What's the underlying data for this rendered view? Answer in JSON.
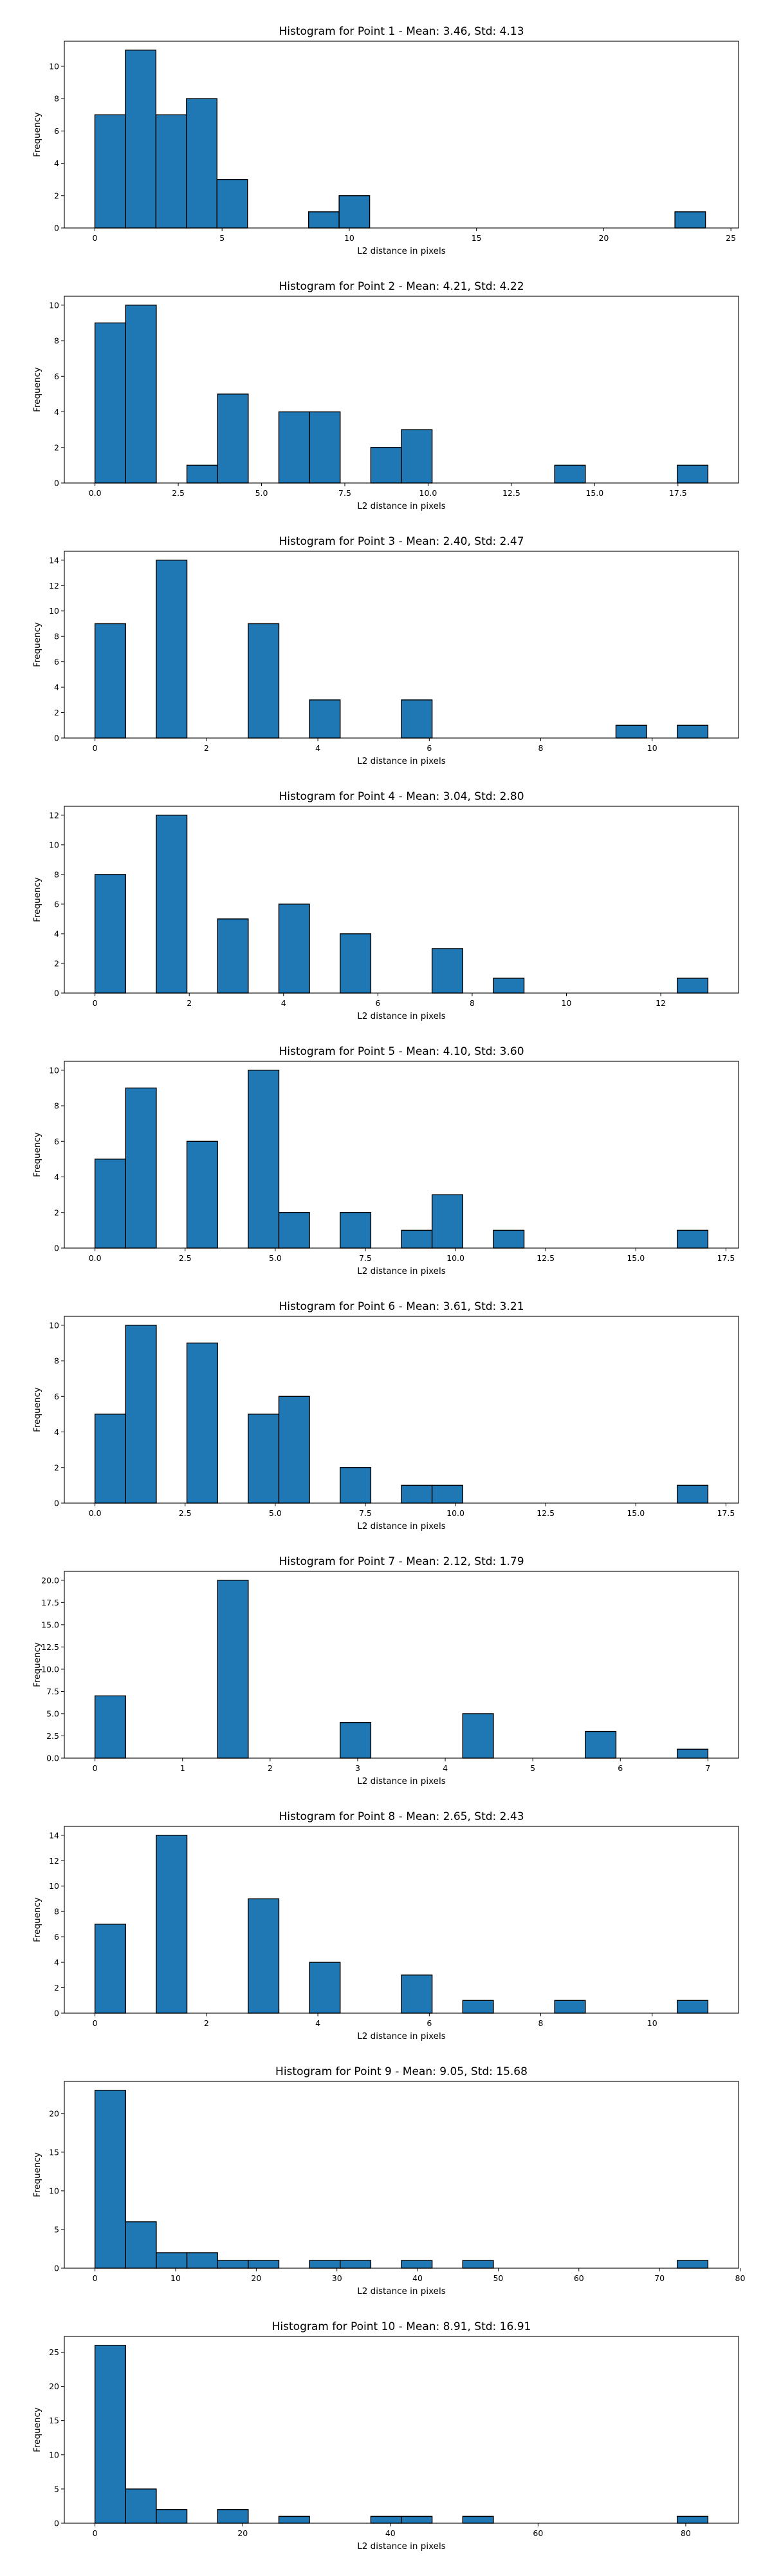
{
  "colors": {
    "bar_fill": "#1f77b4",
    "bar_edge": "#000000",
    "axis": "#000000",
    "background": "#ffffff"
  },
  "chart_data": [
    {
      "type": "bar",
      "title": "Histogram for Point 1 - Mean: 3.46, Std: 4.13",
      "xlabel": "L2 distance in pixels",
      "ylabel": "Frequency",
      "xlim": [
        -1.2,
        25.3
      ],
      "ylim": [
        0,
        11.55
      ],
      "xticks": [
        0,
        5,
        10,
        15,
        20,
        25
      ],
      "xtick_labels": [
        "0",
        "5",
        "10",
        "15",
        "20",
        "25"
      ],
      "yticks": [
        0,
        2,
        4,
        6,
        8,
        10
      ],
      "ytick_labels": [
        "0",
        "2",
        "4",
        "6",
        "8",
        "10"
      ],
      "grid": false,
      "bin_edges": [
        0.0,
        1.2,
        2.4,
        3.6,
        4.8,
        6.0,
        7.2,
        8.4,
        9.6,
        10.8,
        12.0,
        13.2,
        14.4,
        15.6,
        16.8,
        18.0,
        19.2,
        20.4,
        21.6,
        22.8,
        24.0
      ],
      "values": [
        7,
        11,
        7,
        8,
        3,
        0,
        0,
        1,
        2,
        0,
        0,
        0,
        0,
        0,
        0,
        0,
        0,
        0,
        0,
        1
      ]
    },
    {
      "type": "bar",
      "title": "Histogram for Point 2 - Mean: 4.21, Std: 4.22",
      "xlabel": "L2 distance in pixels",
      "ylabel": "Frequency",
      "xlim": [
        -0.92,
        19.32
      ],
      "ylim": [
        0,
        10.5
      ],
      "xticks": [
        0,
        2.5,
        5,
        7.5,
        10,
        12.5,
        15,
        17.5
      ],
      "xtick_labels": [
        "0.0",
        "2.5",
        "5.0",
        "7.5",
        "10.0",
        "12.5",
        "15.0",
        "17.5"
      ],
      "yticks": [
        0,
        2,
        4,
        6,
        8,
        10
      ],
      "ytick_labels": [
        "0",
        "2",
        "4",
        "6",
        "8",
        "10"
      ],
      "grid": false,
      "bin_edges": [
        0.0,
        0.92,
        1.84,
        2.76,
        3.68,
        4.6,
        5.52,
        6.44,
        7.36,
        8.28,
        9.2,
        10.12,
        11.04,
        11.96,
        12.88,
        13.8,
        14.72,
        15.64,
        16.56,
        17.48,
        18.4
      ],
      "values": [
        9,
        10,
        0,
        1,
        5,
        0,
        4,
        4,
        0,
        2,
        3,
        0,
        0,
        0,
        0,
        1,
        0,
        0,
        0,
        1
      ]
    },
    {
      "type": "bar",
      "title": "Histogram for Point 3 - Mean: 2.40, Std: 2.47",
      "xlabel": "L2 distance in pixels",
      "ylabel": "Frequency",
      "xlim": [
        -0.55,
        11.55
      ],
      "ylim": [
        0,
        14.7
      ],
      "xticks": [
        0,
        2,
        4,
        6,
        8,
        10
      ],
      "xtick_labels": [
        "0",
        "2",
        "4",
        "6",
        "8",
        "10"
      ],
      "yticks": [
        0,
        2,
        4,
        6,
        8,
        10,
        12,
        14
      ],
      "ytick_labels": [
        "0",
        "2",
        "4",
        "6",
        "8",
        "10",
        "12",
        "14"
      ],
      "grid": false,
      "bin_edges": [
        0.0,
        0.55,
        1.1,
        1.65,
        2.2,
        2.75,
        3.3,
        3.85,
        4.4,
        4.95,
        5.5,
        6.05,
        6.6,
        7.15,
        7.7,
        8.25,
        8.8,
        9.35,
        9.9,
        10.45,
        11.0
      ],
      "values": [
        9,
        0,
        14,
        0,
        0,
        9,
        0,
        3,
        0,
        0,
        3,
        0,
        0,
        0,
        0,
        0,
        0,
        1,
        0,
        1
      ]
    },
    {
      "type": "bar",
      "title": "Histogram for Point 4 - Mean: 3.04, Std: 2.80",
      "xlabel": "L2 distance in pixels",
      "ylabel": "Frequency",
      "xlim": [
        -0.65,
        13.65
      ],
      "ylim": [
        0,
        12.6
      ],
      "xticks": [
        0,
        2,
        4,
        6,
        8,
        10,
        12
      ],
      "xtick_labels": [
        "0",
        "2",
        "4",
        "6",
        "8",
        "10",
        "12"
      ],
      "yticks": [
        0,
        2,
        4,
        6,
        8,
        10,
        12
      ],
      "ytick_labels": [
        "0",
        "2",
        "4",
        "6",
        "8",
        "10",
        "12"
      ],
      "grid": false,
      "bin_edges": [
        0.0,
        0.65,
        1.3,
        1.95,
        2.6,
        3.25,
        3.9,
        4.55,
        5.2,
        5.85,
        6.5,
        7.15,
        7.8,
        8.45,
        9.1,
        9.75,
        10.4,
        11.05,
        11.7,
        12.35,
        13.0
      ],
      "values": [
        8,
        0,
        12,
        0,
        5,
        0,
        6,
        0,
        4,
        0,
        0,
        3,
        0,
        1,
        0,
        0,
        0,
        0,
        0,
        1
      ]
    },
    {
      "type": "bar",
      "title": "Histogram for Point 5 - Mean: 4.10, Std: 3.60",
      "xlabel": "L2 distance in pixels",
      "ylabel": "Frequency",
      "xlim": [
        -0.85,
        17.85
      ],
      "ylim": [
        0,
        10.5
      ],
      "xticks": [
        0,
        2.5,
        5,
        7.5,
        10,
        12.5,
        15,
        17.5
      ],
      "xtick_labels": [
        "0.0",
        "2.5",
        "5.0",
        "7.5",
        "10.0",
        "12.5",
        "15.0",
        "17.5"
      ],
      "yticks": [
        0,
        2,
        4,
        6,
        8,
        10
      ],
      "ytick_labels": [
        "0",
        "2",
        "4",
        "6",
        "8",
        "10"
      ],
      "grid": false,
      "bin_edges": [
        0.0,
        0.85,
        1.7,
        2.55,
        3.4,
        4.25,
        5.1,
        5.95,
        6.8,
        7.65,
        8.5,
        9.35,
        10.2,
        11.05,
        11.9,
        12.75,
        13.6,
        14.45,
        15.3,
        16.15,
        17.0
      ],
      "values": [
        5,
        9,
        0,
        6,
        0,
        10,
        2,
        0,
        2,
        0,
        1,
        3,
        0,
        1,
        0,
        0,
        0,
        0,
        0,
        1
      ]
    },
    {
      "type": "bar",
      "title": "Histogram for Point 6 - Mean: 3.61, Std: 3.21",
      "xlabel": "L2 distance in pixels",
      "ylabel": "Frequency",
      "xlim": [
        -0.85,
        17.85
      ],
      "ylim": [
        0,
        10.5
      ],
      "xticks": [
        0,
        2.5,
        5,
        7.5,
        10,
        12.5,
        15,
        17.5
      ],
      "xtick_labels": [
        "0.0",
        "2.5",
        "5.0",
        "7.5",
        "10.0",
        "12.5",
        "15.0",
        "17.5"
      ],
      "yticks": [
        0,
        2,
        4,
        6,
        8,
        10
      ],
      "ytick_labels": [
        "0",
        "2",
        "4",
        "6",
        "8",
        "10"
      ],
      "grid": false,
      "bin_edges": [
        0.0,
        0.85,
        1.7,
        2.55,
        3.4,
        4.25,
        5.1,
        5.95,
        6.8,
        7.65,
        8.5,
        9.35,
        10.2,
        11.05,
        11.9,
        12.75,
        13.6,
        14.45,
        15.3,
        16.15,
        17.0
      ],
      "values": [
        5,
        10,
        0,
        9,
        0,
        5,
        6,
        0,
        2,
        0,
        1,
        1,
        0,
        0,
        0,
        0,
        0,
        0,
        0,
        1
      ]
    },
    {
      "type": "bar",
      "title": "Histogram for Point 7 - Mean: 2.12, Std: 1.79",
      "xlabel": "L2 distance in pixels",
      "ylabel": "Frequency",
      "xlim": [
        -0.35,
        7.35
      ],
      "ylim": [
        0,
        21
      ],
      "xticks": [
        0,
        1,
        2,
        3,
        4,
        5,
        6,
        7
      ],
      "xtick_labels": [
        "0",
        "1",
        "2",
        "3",
        "4",
        "5",
        "6",
        "7"
      ],
      "yticks": [
        0,
        2.5,
        5,
        7.5,
        10,
        12.5,
        15,
        17.5,
        20
      ],
      "ytick_labels": [
        "0.0",
        "2.5",
        "5.0",
        "7.5",
        "10.0",
        "12.5",
        "15.0",
        "17.5",
        "20.0"
      ],
      "grid": false,
      "bin_edges": [
        0.0,
        0.35,
        0.7,
        1.05,
        1.4,
        1.75,
        2.1,
        2.45,
        2.8,
        3.15,
        3.5,
        3.85,
        4.2,
        4.55,
        4.9,
        5.25,
        5.6,
        5.95,
        6.3,
        6.65,
        7.0
      ],
      "values": [
        7,
        0,
        0,
        0,
        20,
        0,
        0,
        0,
        4,
        0,
        0,
        0,
        5,
        0,
        0,
        0,
        3,
        0,
        0,
        1
      ]
    },
    {
      "type": "bar",
      "title": "Histogram for Point 8 - Mean: 2.65, Std: 2.43",
      "xlabel": "L2 distance in pixels",
      "ylabel": "Frequency",
      "xlim": [
        -0.55,
        11.55
      ],
      "ylim": [
        0,
        14.7
      ],
      "xticks": [
        0,
        2,
        4,
        6,
        8,
        10
      ],
      "xtick_labels": [
        "0",
        "2",
        "4",
        "6",
        "8",
        "10"
      ],
      "yticks": [
        0,
        2,
        4,
        6,
        8,
        10,
        12,
        14
      ],
      "ytick_labels": [
        "0",
        "2",
        "4",
        "6",
        "8",
        "10",
        "12",
        "14"
      ],
      "grid": false,
      "bin_edges": [
        0.0,
        0.55,
        1.1,
        1.65,
        2.2,
        2.75,
        3.3,
        3.85,
        4.4,
        4.95,
        5.5,
        6.05,
        6.6,
        7.15,
        7.7,
        8.25,
        8.8,
        9.35,
        9.9,
        10.45,
        11.0
      ],
      "values": [
        7,
        0,
        14,
        0,
        0,
        9,
        0,
        4,
        0,
        0,
        3,
        0,
        1,
        0,
        0,
        1,
        0,
        0,
        0,
        1
      ]
    },
    {
      "type": "bar",
      "title": "Histogram for Point 9 - Mean: 9.05, Std: 15.68",
      "xlabel": "L2 distance in pixels",
      "ylabel": "Frequency",
      "xlim": [
        -3.8,
        79.8
      ],
      "ylim": [
        0,
        24.15
      ],
      "xticks": [
        0,
        10,
        20,
        30,
        40,
        50,
        60,
        70,
        80
      ],
      "xtick_labels": [
        "0",
        "10",
        "20",
        "30",
        "40",
        "50",
        "60",
        "70",
        "80"
      ],
      "yticks": [
        0,
        5,
        10,
        15,
        20
      ],
      "ytick_labels": [
        "0",
        "5",
        "10",
        "15",
        "20"
      ],
      "grid": false,
      "bin_edges": [
        0.0,
        3.8,
        7.6,
        11.4,
        15.2,
        19.0,
        22.8,
        26.6,
        30.4,
        34.2,
        38.0,
        41.8,
        45.6,
        49.4,
        53.2,
        57.0,
        60.8,
        64.6,
        68.4,
        72.2,
        76.0
      ],
      "values": [
        23,
        6,
        2,
        2,
        1,
        1,
        0,
        1,
        1,
        0,
        1,
        0,
        1,
        0,
        0,
        0,
        0,
        0,
        0,
        1
      ]
    },
    {
      "type": "bar",
      "title": "Histogram for Point 10 - Mean: 8.91, Std: 16.91",
      "xlabel": "L2 distance in pixels",
      "ylabel": "Frequency",
      "xlim": [
        -4.15,
        87.15
      ],
      "ylim": [
        0,
        27.3
      ],
      "xticks": [
        0,
        20,
        40,
        60,
        80
      ],
      "xtick_labels": [
        "0",
        "20",
        "40",
        "60",
        "80"
      ],
      "yticks": [
        0,
        5,
        10,
        15,
        20,
        25
      ],
      "ytick_labels": [
        "0",
        "5",
        "10",
        "15",
        "20",
        "25"
      ],
      "grid": false,
      "bin_edges": [
        0.0,
        4.15,
        8.3,
        12.45,
        16.6,
        20.75,
        24.9,
        29.05,
        33.2,
        37.35,
        41.5,
        45.65,
        49.8,
        53.95,
        58.1,
        62.25,
        66.4,
        70.55,
        74.7,
        78.85,
        83.0
      ],
      "values": [
        26,
        5,
        2,
        0,
        2,
        0,
        1,
        0,
        0,
        1,
        1,
        0,
        1,
        0,
        0,
        0,
        0,
        0,
        0,
        1
      ]
    }
  ]
}
